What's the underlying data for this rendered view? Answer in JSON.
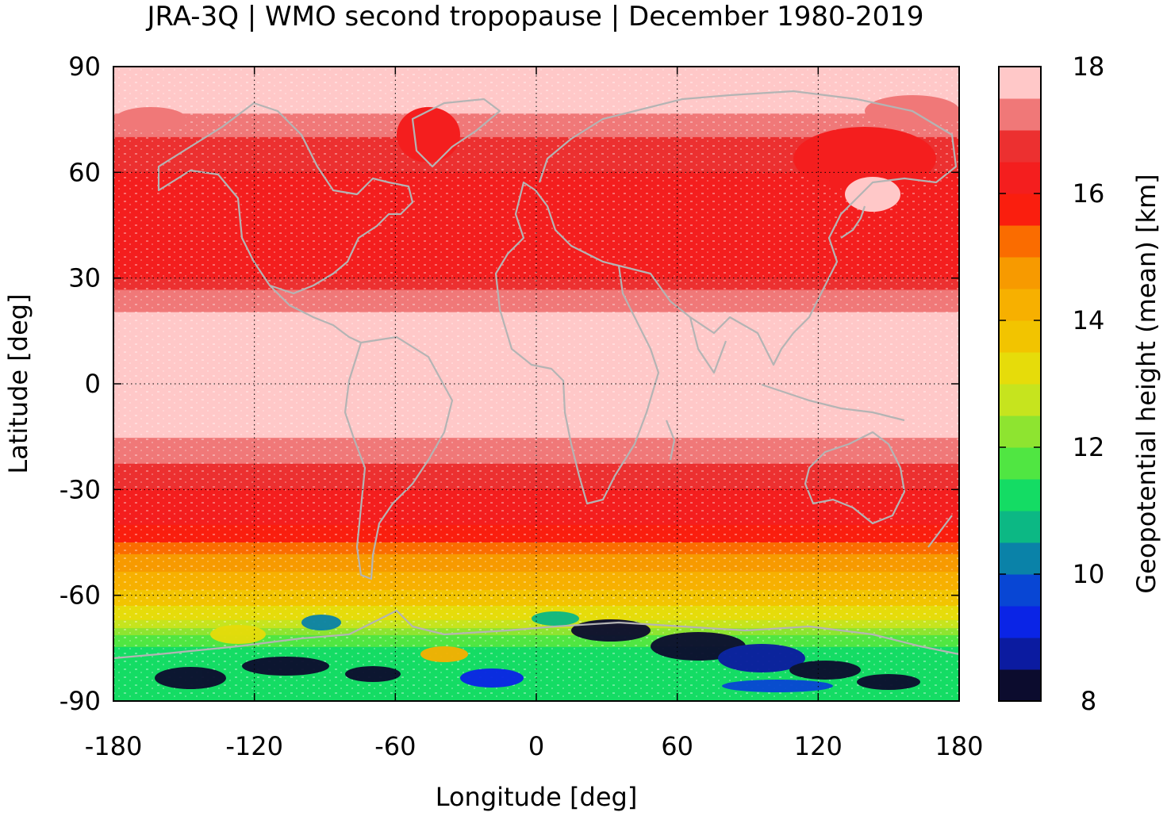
{
  "title": "JRA-3Q | WMO second tropopause | December 1980-2019",
  "map": {
    "xlabel": "Longitude [deg]",
    "ylabel": "Latitude [deg]",
    "xlim": [
      -180,
      180
    ],
    "ylim": [
      -90,
      90
    ],
    "x_ticks": [
      "-180",
      "-120",
      "-60",
      "0",
      "60",
      "120",
      "180"
    ],
    "x_tick_values": [
      -180,
      -120,
      -60,
      0,
      60,
      120,
      180
    ],
    "y_ticks": [
      "90",
      "60",
      "30",
      "0",
      "-30",
      "-60",
      "-90"
    ],
    "y_tick_values": [
      90,
      60,
      30,
      0,
      -30,
      -60,
      -90
    ],
    "grid": "dotted",
    "coastline_color": "#b4b4b4"
  },
  "colorbar": {
    "label": "Geopotential height (mean) [km]",
    "range": [
      8,
      18
    ],
    "ticks": [
      "18",
      "16",
      "14",
      "12",
      "10",
      "8"
    ],
    "tick_values": [
      18,
      16,
      14,
      12,
      10,
      8
    ],
    "colors_low_to_high": [
      "#0c0c2e",
      "#0b1ba0",
      "#0a24e6",
      "#0846d4",
      "#0a82a8",
      "#0cb884",
      "#14dc64",
      "#50e642",
      "#8ee430",
      "#c6e41e",
      "#e6dc0a",
      "#f2c400",
      "#f7b000",
      "#f79a00",
      "#fa6c00",
      "#fa1e0e",
      "#f41e1e",
      "#ec3030",
      "#f07878",
      "#ffc8c8"
    ]
  },
  "chart_data": {
    "type": "heatmap",
    "title": "JRA-3Q | WMO second tropopause | December 1980-2019",
    "xlabel": "Longitude [deg]",
    "ylabel": "Latitude [deg]",
    "xlim": [
      -180,
      180
    ],
    "ylim": [
      -90,
      90
    ],
    "colorbar_label": "Geopotential height (mean) [km]",
    "colorbar_range": [
      8,
      18
    ],
    "zonal_mean_km": [
      {
        "lat": 90,
        "value": 17.8
      },
      {
        "lat": 80,
        "value": 17.8
      },
      {
        "lat": 70,
        "value": 17.0
      },
      {
        "lat": 60,
        "value": 16.5
      },
      {
        "lat": 50,
        "value": 16.0
      },
      {
        "lat": 40,
        "value": 16.2
      },
      {
        "lat": 30,
        "value": 16.5
      },
      {
        "lat": 25,
        "value": 17.2
      },
      {
        "lat": 18,
        "value": 17.6
      },
      {
        "lat": 0,
        "value": 17.9
      },
      {
        "lat": -10,
        "value": 17.8
      },
      {
        "lat": -18,
        "value": 17.3
      },
      {
        "lat": -25,
        "value": 16.8
      },
      {
        "lat": -32,
        "value": 16.3
      },
      {
        "lat": -40,
        "value": 16.0
      },
      {
        "lat": -45,
        "value": 15.5
      },
      {
        "lat": -50,
        "value": 14.8
      },
      {
        "lat": -55,
        "value": 14.3
      },
      {
        "lat": -62,
        "value": 13.7
      },
      {
        "lat": -68,
        "value": 12.8
      },
      {
        "lat": -72,
        "value": 11.8
      },
      {
        "lat": -80,
        "value": 11.0
      },
      {
        "lat": -90,
        "value": 11.0
      }
    ]
  }
}
